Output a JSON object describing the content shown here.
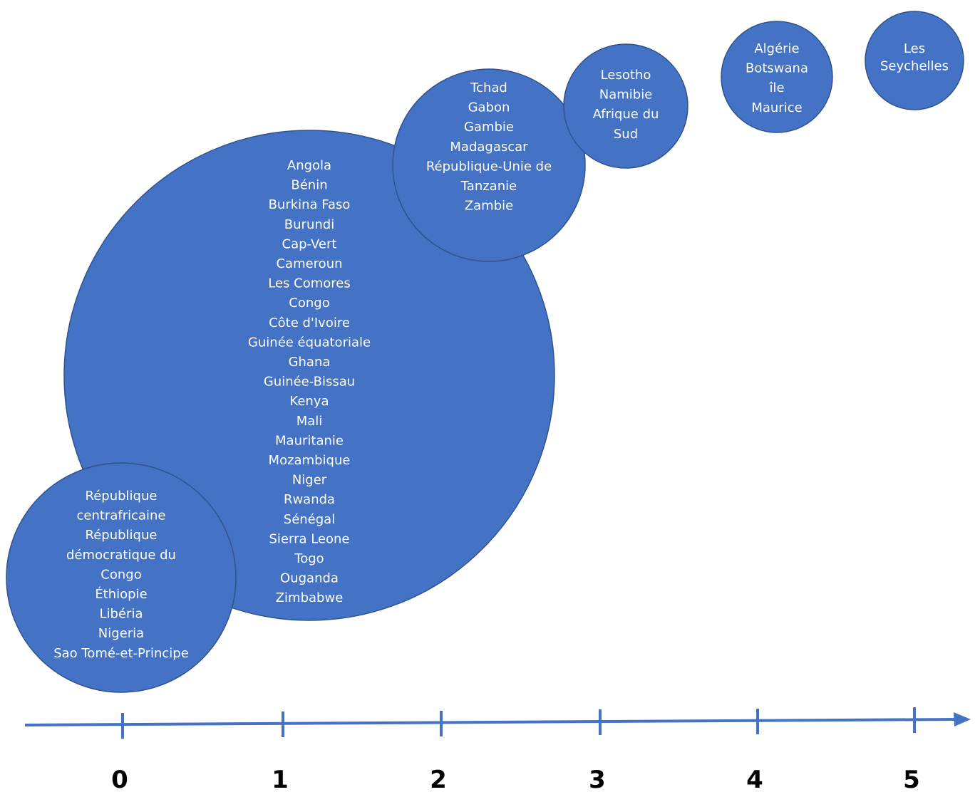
{
  "colors": {
    "bubble_fill": "#4472c4",
    "bubble_stroke": "#2f528f",
    "label_text": "#ffffff",
    "axis": "#4472c4",
    "tick_label": "#000000"
  },
  "axis": {
    "ticks": [
      "0",
      "1",
      "2",
      "3",
      "4",
      "5"
    ]
  },
  "bubbles": [
    {
      "value": 1,
      "lines": [
        "Angola",
        "Bénin",
        "Burkina Faso",
        "Burundi",
        "Cap-Vert",
        "Cameroun",
        "Les Comores",
        "Congo",
        "Côte d'Ivoire",
        "Guinée équatoriale",
        "Ghana",
        "Guinée-Bissau",
        "Kenya",
        "Mali",
        "Mauritanie",
        "Mozambique",
        "Niger",
        "Rwanda",
        "Sénégal",
        "Sierra Leone",
        "Togo",
        "Ouganda",
        "Zimbabwe"
      ]
    },
    {
      "value": 2,
      "lines": [
        "Tchad",
        "Gabon",
        "Gambie",
        "Madagascar",
        "République-Unie de",
        "Tanzanie",
        "Zambie"
      ]
    },
    {
      "value": 3,
      "lines": [
        "Lesotho",
        "Namibie",
        "Afrique du",
        "Sud"
      ]
    },
    {
      "value": 4,
      "lines": [
        "Algérie",
        "Botswana",
        "île",
        "Maurice"
      ]
    },
    {
      "value": 5,
      "lines": [
        "Les",
        "Seychelles"
      ]
    },
    {
      "value": 0,
      "lines": [
        "République",
        "centrafricaine",
        "République",
        "démocratique du",
        "Congo",
        "Éthiopie",
        "Libéria",
        "Nigeria",
        "Sao Tomé-et-Principe"
      ]
    }
  ]
}
